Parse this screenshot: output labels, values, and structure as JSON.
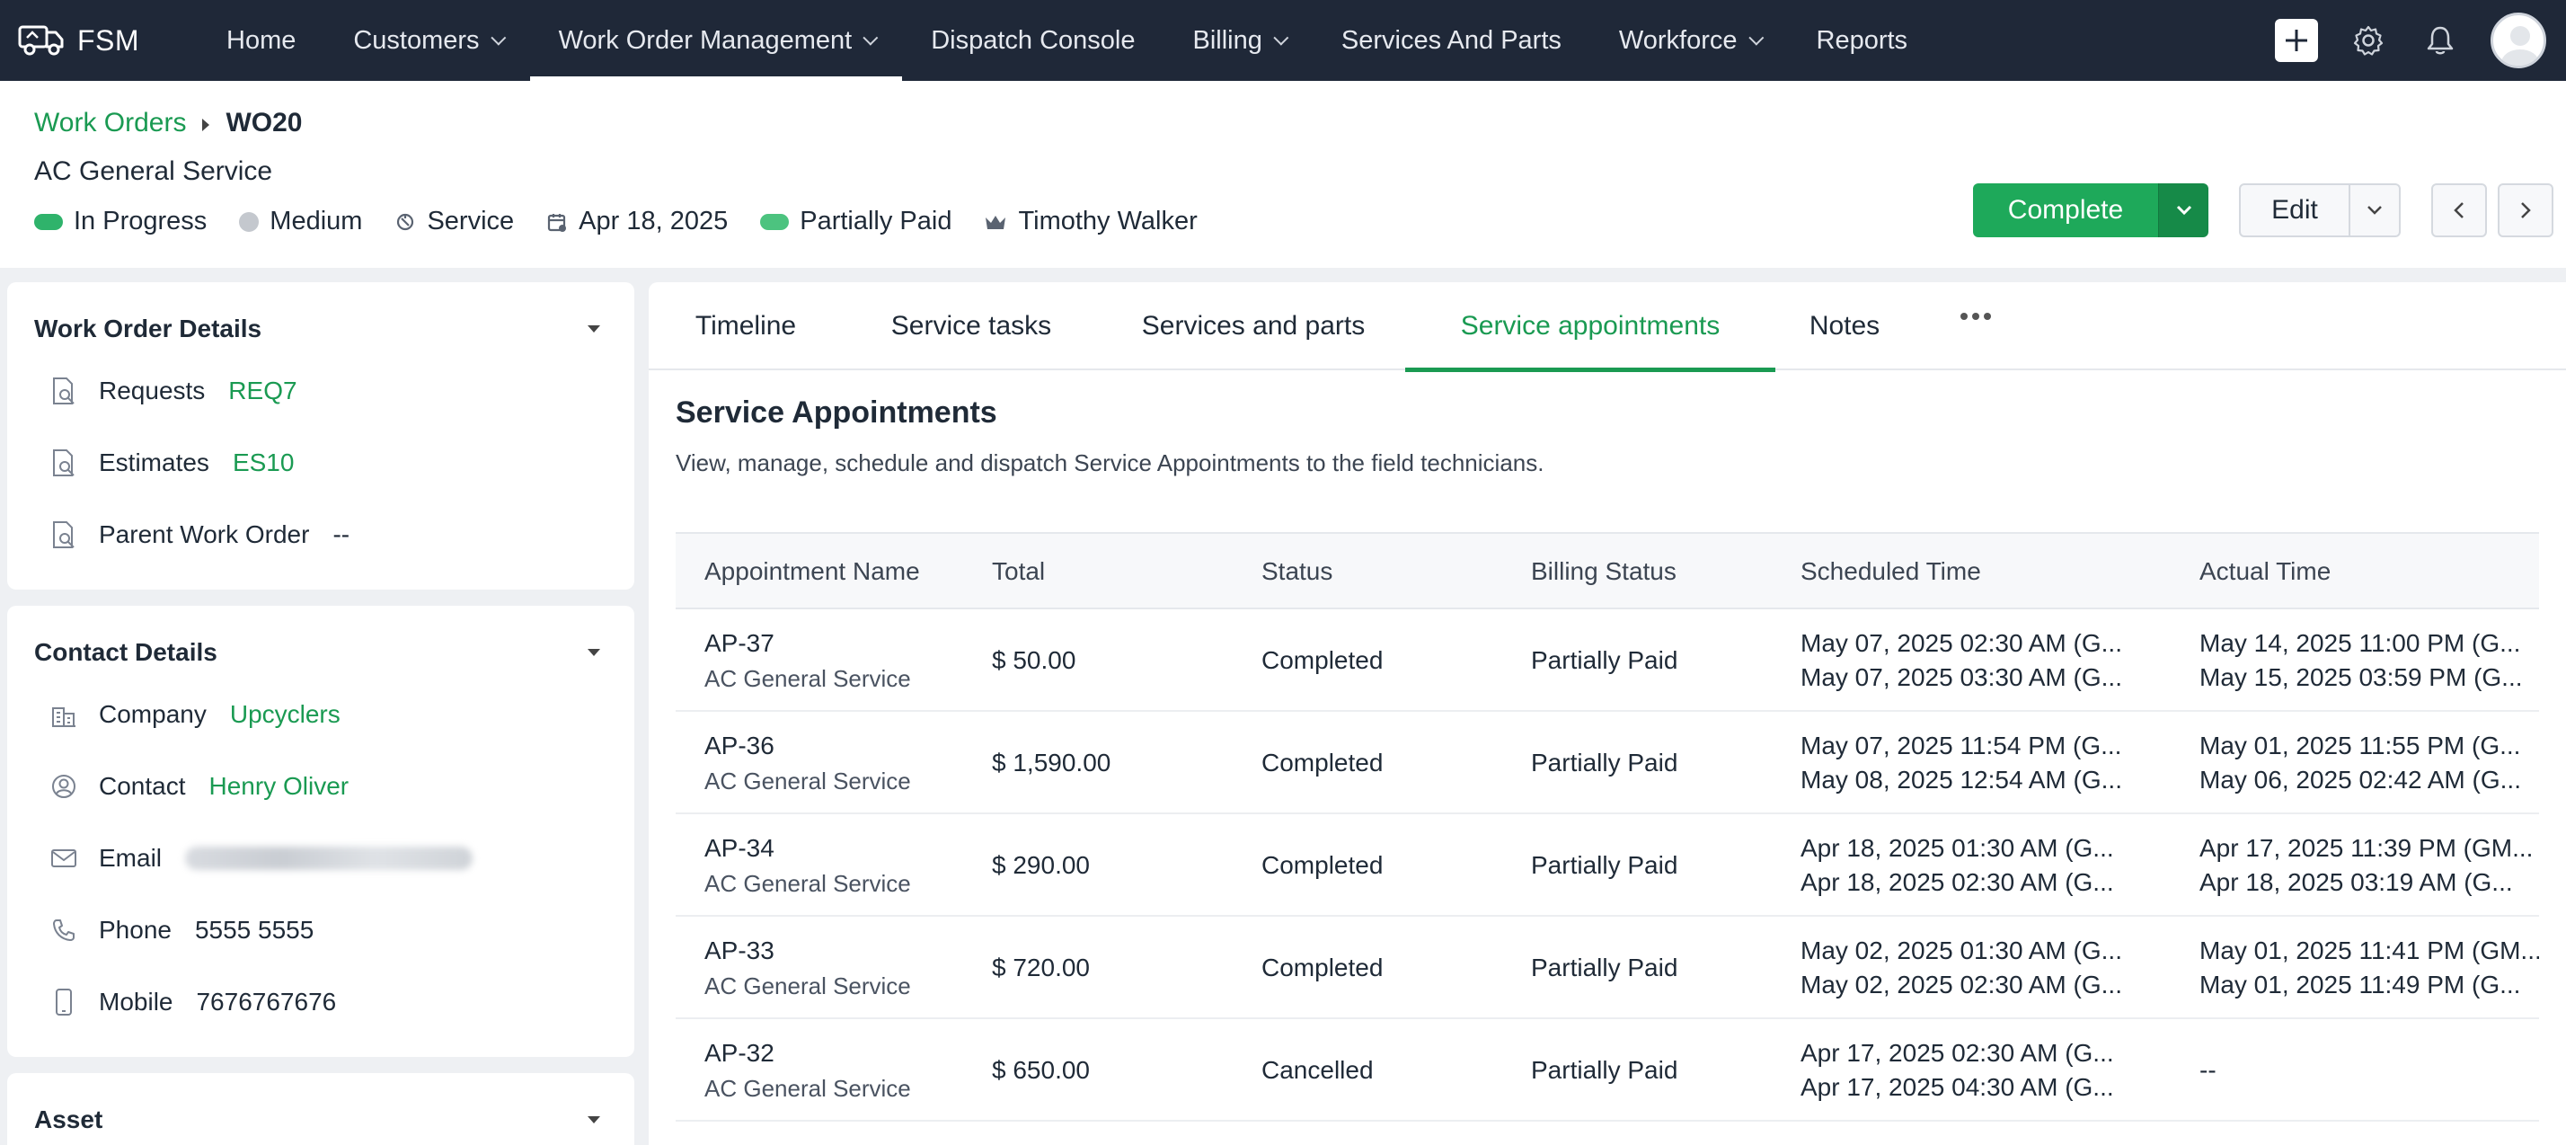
{
  "app": {
    "brand": "FSM"
  },
  "nav": {
    "items": [
      {
        "label": "Home",
        "dropdown": false
      },
      {
        "label": "Customers",
        "dropdown": true
      },
      {
        "label": "Work Order Management",
        "dropdown": true,
        "active": true
      },
      {
        "label": "Dispatch Console",
        "dropdown": false
      },
      {
        "label": "Billing",
        "dropdown": true
      },
      {
        "label": "Services And Parts",
        "dropdown": false
      },
      {
        "label": "Workforce",
        "dropdown": true
      },
      {
        "label": "Reports",
        "dropdown": false
      }
    ],
    "right_icons": [
      "plus-icon",
      "gear-icon",
      "bell-icon",
      "avatar"
    ]
  },
  "header": {
    "breadcrumb_parent": "Work Orders",
    "breadcrumb_current": "WO20",
    "title": "AC General Service",
    "meta": {
      "status": "In Progress",
      "priority": "Medium",
      "type": "Service",
      "date": "Apr 18, 2025",
      "billing": "Partially Paid",
      "owner": "Timothy Walker"
    },
    "complete_label": "Complete",
    "edit_label": "Edit"
  },
  "colors": {
    "accent": "#1a9a52",
    "nav_bg": "#1f2838",
    "status_in_progress": "#2fb36b",
    "priority_medium": "#c4c8ce",
    "billing_partial": "#4cc37f"
  },
  "sidebar": {
    "work_order_details": {
      "title": "Work Order Details",
      "requests_label": "Requests",
      "requests_value": "REQ7",
      "estimates_label": "Estimates",
      "estimates_value": "ES10",
      "parent_label": "Parent Work Order",
      "parent_value": "--"
    },
    "contact_details": {
      "title": "Contact Details",
      "company_label": "Company",
      "company_value": "Upcyclers",
      "contact_label": "Contact",
      "contact_value": "Henry Oliver",
      "email_label": "Email",
      "phone_label": "Phone",
      "phone_value": "5555 5555",
      "mobile_label": "Mobile",
      "mobile_value": "7676767676"
    },
    "asset": {
      "title": "Asset"
    }
  },
  "tabs": [
    {
      "label": "Timeline"
    },
    {
      "label": "Service tasks"
    },
    {
      "label": "Services and parts"
    },
    {
      "label": "Service appointments",
      "active": true
    },
    {
      "label": "Notes"
    }
  ],
  "appointments": {
    "title": "Service Appointments",
    "description": "View, manage, schedule and dispatch Service Appointments to the field technicians.",
    "columns": [
      "Appointment Name",
      "Total",
      "Status",
      "Billing Status",
      "Scheduled Time",
      "Actual Time"
    ],
    "rows": [
      {
        "name": "AP-37",
        "service": "AC General Service",
        "total": "$ 50.00",
        "status": "Completed",
        "billing": "Partially Paid",
        "sched_start": "May 07, 2025 02:30 AM (G...",
        "sched_end": "May 07, 2025 03:30 AM (G...",
        "actual_start": "May 14, 2025 11:00 PM (G...",
        "actual_end": "May 15, 2025 03:59 PM (G..."
      },
      {
        "name": "AP-36",
        "service": "AC General Service",
        "total": "$ 1,590.00",
        "status": "Completed",
        "billing": "Partially Paid",
        "sched_start": "May 07, 2025 11:54 PM (G...",
        "sched_end": "May 08, 2025 12:54 AM (G...",
        "actual_start": "May 01, 2025 11:55 PM (G...",
        "actual_end": "May 06, 2025 02:42 AM (G..."
      },
      {
        "name": "AP-34",
        "service": "AC General Service",
        "total": "$ 290.00",
        "status": "Completed",
        "billing": "Partially Paid",
        "sched_start": "Apr 18, 2025 01:30 AM (G...",
        "sched_end": "Apr 18, 2025 02:30 AM (G...",
        "actual_start": "Apr 17, 2025 11:39 PM (GM...",
        "actual_end": "Apr 18, 2025 03:19 AM (G..."
      },
      {
        "name": "AP-33",
        "service": "AC General Service",
        "total": "$ 720.00",
        "status": "Completed",
        "billing": "Partially Paid",
        "sched_start": "May 02, 2025 01:30 AM (G...",
        "sched_end": "May 02, 2025 02:30 AM (G...",
        "actual_start": "May 01, 2025 11:41 PM (GM...",
        "actual_end": "May 01, 2025 11:49 PM (G..."
      },
      {
        "name": "AP-32",
        "service": "AC General Service",
        "total": "$ 650.00",
        "status": "Cancelled",
        "billing": "Partially Paid",
        "sched_start": "Apr 17, 2025 02:30 AM (G...",
        "sched_end": "Apr 17, 2025 04:30 AM (G...",
        "actual_start": "--",
        "actual_end": ""
      }
    ]
  }
}
